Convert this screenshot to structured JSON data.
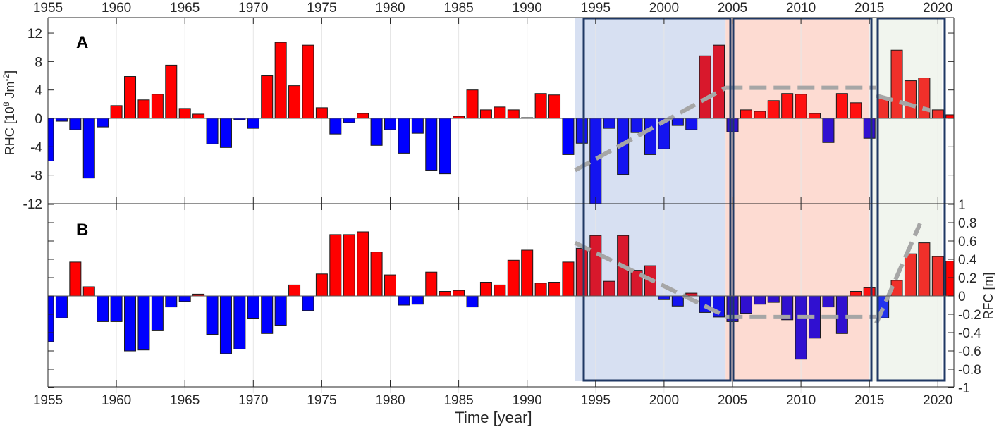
{
  "chart_data": [
    {
      "type": "bar",
      "panel_label": "A",
      "title": "",
      "xlabel": "",
      "ylabel": "RHC [10^8 Jm^-2]",
      "ylabel_parts": {
        "base": "RHC [10",
        "exp1": "8",
        "mid": " Jm",
        "exp2": "-2",
        "end": "]"
      },
      "ylim": [
        -12,
        14
      ],
      "yticks": [
        -12,
        -8,
        -4,
        0,
        4,
        8,
        12
      ],
      "x_axis_position": "top",
      "xticks": [
        1955,
        1960,
        1965,
        1970,
        1975,
        1980,
        1985,
        1990,
        1995,
        2000,
        2005,
        2010,
        2015,
        2020
      ],
      "x": [
        1955,
        1956,
        1957,
        1958,
        1959,
        1960,
        1961,
        1962,
        1963,
        1964,
        1965,
        1966,
        1967,
        1968,
        1969,
        1970,
        1971,
        1972,
        1973,
        1974,
        1975,
        1976,
        1977,
        1978,
        1979,
        1980,
        1981,
        1982,
        1983,
        1984,
        1985,
        1986,
        1987,
        1988,
        1989,
        1990,
        1991,
        1992,
        1993,
        1994,
        1995,
        1996,
        1997,
        1998,
        1999,
        2000,
        2001,
        2002,
        2003,
        2004,
        2005,
        2006,
        2007,
        2008,
        2009,
        2010,
        2011,
        2012,
        2013,
        2014,
        2015,
        2016,
        2017,
        2018,
        2019,
        2020,
        2021
      ],
      "values": [
        -6.0,
        -0.4,
        -1.6,
        -8.4,
        -1.2,
        1.8,
        5.9,
        2.6,
        3.4,
        7.5,
        1.4,
        0.6,
        -3.6,
        -4.1,
        -0.2,
        -1.4,
        6.0,
        10.7,
        4.6,
        10.3,
        1.5,
        -2.2,
        -0.6,
        0.7,
        -3.8,
        -1.6,
        -4.9,
        -2.1,
        -7.3,
        -7.8,
        0.3,
        4.0,
        1.2,
        1.6,
        1.2,
        0.1,
        3.5,
        3.3,
        -5.1,
        -3.5,
        -12.0,
        -1.4,
        -7.9,
        -2.0,
        -5.1,
        -4.3,
        -1.0,
        -1.6,
        8.8,
        10.3,
        -1.9,
        1.2,
        1.0,
        2.5,
        3.5,
        3.4,
        0.7,
        -3.4,
        3.5,
        2.2,
        -2.8,
        3.0,
        9.6,
        5.3,
        5.7,
        1.2,
        0.5
      ],
      "trend_lines": [
        {
          "x": [
            1994,
            2005
          ],
          "y": [
            -7.3,
            4.3
          ]
        },
        {
          "x": [
            2005,
            2016
          ],
          "y": [
            4.3,
            4.3
          ]
        },
        {
          "x": [
            2016,
            2020
          ],
          "y": [
            3.2,
            1.1
          ]
        }
      ],
      "grid": "vertical only"
    },
    {
      "type": "bar",
      "panel_label": "B",
      "title": "",
      "xlabel": "Time [year]",
      "ylabel": "RFC [m]",
      "ylim": [
        -1,
        1
      ],
      "yticks": [
        -1,
        -0.8,
        -0.6,
        -0.4,
        -0.2,
        0,
        0.2,
        0.4,
        0.6,
        0.8,
        1
      ],
      "ytick_labels": [
        "-1",
        "-0.8",
        "-0.6",
        "-0.4",
        "-0.2",
        "0",
        "0.2",
        "0.4",
        "0.6",
        "0.8",
        "1"
      ],
      "y_axis_position": "right",
      "xticks": [
        1955,
        1960,
        1965,
        1970,
        1975,
        1980,
        1985,
        1990,
        1995,
        2000,
        2005,
        2010,
        2015,
        2020
      ],
      "x": [
        1955,
        1956,
        1957,
        1958,
        1959,
        1960,
        1961,
        1962,
        1963,
        1964,
        1965,
        1966,
        1967,
        1968,
        1969,
        1970,
        1971,
        1972,
        1973,
        1974,
        1975,
        1976,
        1977,
        1978,
        1979,
        1980,
        1981,
        1982,
        1983,
        1984,
        1985,
        1986,
        1987,
        1988,
        1989,
        1990,
        1991,
        1992,
        1993,
        1994,
        1995,
        1996,
        1997,
        1998,
        1999,
        2000,
        2001,
        2002,
        2003,
        2004,
        2005,
        2006,
        2007,
        2008,
        2009,
        2010,
        2011,
        2012,
        2013,
        2014,
        2015,
        2016,
        2017,
        2018,
        2019,
        2020,
        2021
      ],
      "values": [
        -0.5,
        -0.24,
        0.37,
        0.1,
        -0.28,
        -0.28,
        -0.6,
        -0.59,
        -0.38,
        -0.12,
        -0.06,
        0.02,
        -0.42,
        -0.63,
        -0.58,
        -0.25,
        -0.41,
        -0.32,
        0.12,
        -0.16,
        0.24,
        0.67,
        0.67,
        0.7,
        0.48,
        0.23,
        -0.1,
        -0.09,
        0.26,
        0.05,
        0.06,
        -0.12,
        0.15,
        0.12,
        0.39,
        0.5,
        0.14,
        0.15,
        0.37,
        0.52,
        0.66,
        0.16,
        0.66,
        0.28,
        0.33,
        -0.04,
        -0.11,
        0.03,
        -0.18,
        -0.23,
        -0.28,
        -0.19,
        -0.09,
        -0.07,
        -0.26,
        -0.69,
        -0.46,
        -0.12,
        -0.41,
        0.05,
        0.09,
        -0.24,
        0.17,
        0.46,
        0.58,
        0.43,
        0.38
      ],
      "trend_lines": [
        {
          "x": [
            1994,
            2005
          ],
          "y": [
            0.58,
            -0.22
          ]
        },
        {
          "x": [
            2005,
            2016
          ],
          "y": [
            -0.23,
            -0.23
          ]
        },
        {
          "x": [
            2016,
            2019.2
          ],
          "y": [
            -0.3,
            0.79
          ]
        }
      ],
      "grid": "vertical only"
    }
  ],
  "periods": [
    {
      "name": "period-1",
      "start": 1994,
      "end": 2005,
      "fill": "#d7e0f2",
      "red": "#d8182c",
      "blue": "#1414f0"
    },
    {
      "name": "period-2",
      "start": 2005,
      "end": 2015.5,
      "fill": "#fddbd2",
      "red": "#ff1010",
      "blue": "#3010d0"
    },
    {
      "name": "period-3",
      "start": 2015.7,
      "end": 2020.8,
      "fill": "#f1f5ee",
      "red": "#f0302a",
      "blue": "#2233ee"
    }
  ],
  "colors": {
    "positive": "#ff0000",
    "negative": "#0000ff",
    "box_border": "#1f3864",
    "trend": "#a6a6a6",
    "axis": "#262626",
    "grid": "#e6e6e6"
  }
}
